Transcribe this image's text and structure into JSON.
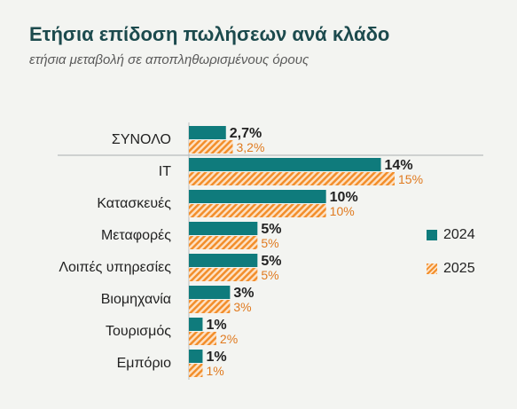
{
  "title": "Ετήσια επίδοση πωλήσεων ανά κλάδο",
  "subtitle": "ετήσια μεταβολή σε αποπληθωρισμένους όρους",
  "colors": {
    "series_2024": "#0f7b7c",
    "series_2025": "#f28e2b",
    "series_2025_label": "#e07a1f",
    "divider": "#b8bcbd"
  },
  "legend": {
    "series_2024": "2024",
    "series_2025": "2025"
  },
  "chart_data": {
    "type": "bar",
    "orientation": "horizontal",
    "categories": [
      "ΣΥΝΟΛΟ",
      "IT",
      "Κατασκευές",
      "Μεταφορές",
      "Λοιπές υπηρεσίες",
      "Βιομηχανία",
      "Τουρισμός",
      "Εμπόριο"
    ],
    "series": [
      {
        "name": "2024",
        "values": [
          2.7,
          14,
          10,
          5,
          5,
          3,
          1,
          1
        ],
        "labels": [
          "2,7%",
          "14%",
          "10%",
          "5%",
          "5%",
          "3%",
          "1%",
          "1%"
        ]
      },
      {
        "name": "2025",
        "values": [
          3.2,
          15,
          10,
          5,
          5,
          3,
          2,
          1
        ],
        "labels": [
          "3,2%",
          "15%",
          "10%",
          "5%",
          "5%",
          "3%",
          "2%",
          "1%"
        ]
      }
    ],
    "xlim": [
      0,
      15
    ],
    "grid": false,
    "legend_position": "right"
  }
}
